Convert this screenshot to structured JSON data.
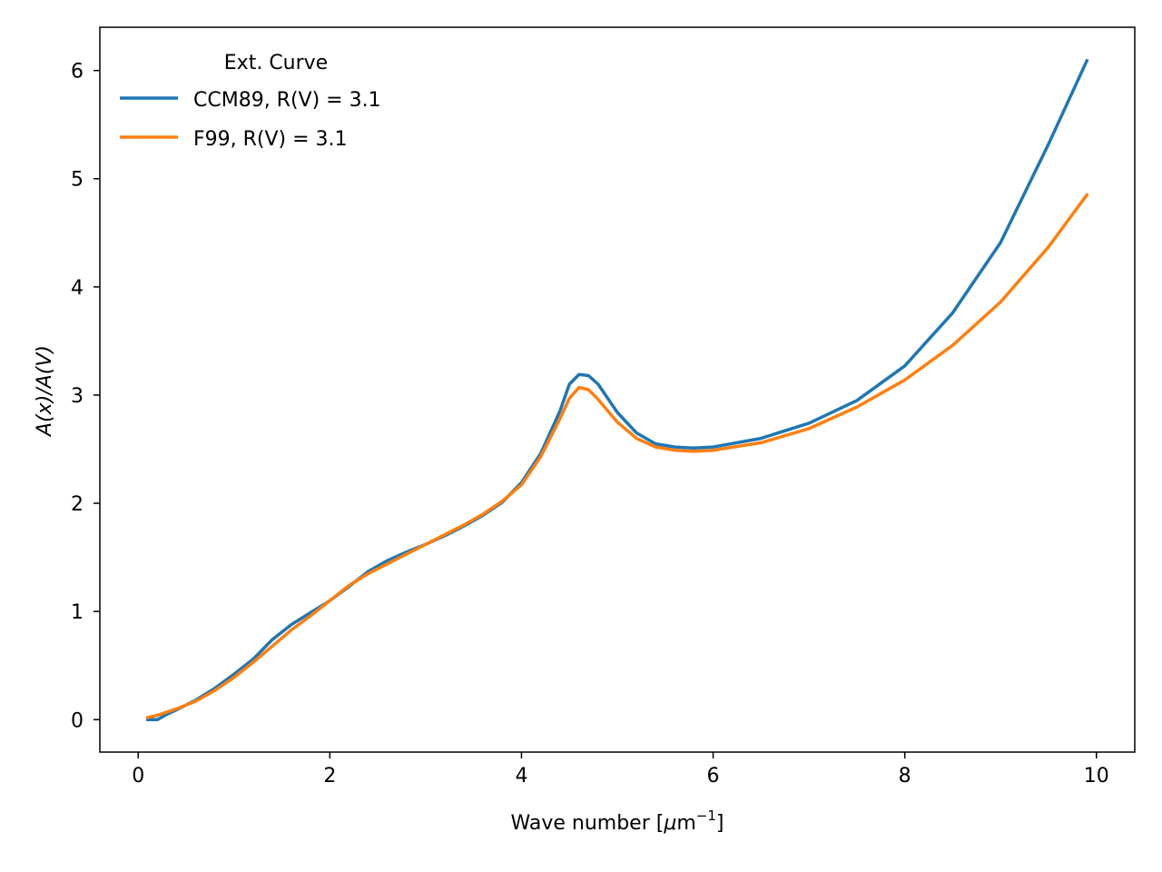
{
  "chart_data": {
    "type": "line",
    "title": "",
    "xlabel_main": "Wave number [",
    "xlabel_mu": "μ",
    "xlabel_unit": "m",
    "xlabel_sup": "−1",
    "xlabel_close": "]",
    "ylabel": "A(x)/A(V)",
    "xlim": [
      -0.4,
      10.4
    ],
    "ylim": [
      -0.3,
      6.4
    ],
    "xticks": [
      0,
      2,
      4,
      6,
      8,
      10
    ],
    "yticks": [
      0,
      1,
      2,
      3,
      4,
      5,
      6
    ],
    "xtick_labels": [
      "0",
      "2",
      "4",
      "6",
      "8",
      "10"
    ],
    "ytick_labels": [
      "0",
      "1",
      "2",
      "3",
      "4",
      "5",
      "6"
    ],
    "grid": false,
    "legend": {
      "title": "Ext. Curve",
      "placement": "top-left",
      "entries": [
        "CCM89, R(V) = 3.1",
        "F99, R(V) = 3.1"
      ]
    },
    "series": [
      {
        "name": "CCM89, R(V) = 3.1",
        "color": "#1f77b4",
        "x": [
          0.1,
          0.2,
          0.3,
          0.4,
          0.6,
          0.8,
          1.0,
          1.2,
          1.4,
          1.6,
          1.8,
          2.0,
          2.2,
          2.4,
          2.6,
          2.8,
          3.0,
          3.2,
          3.4,
          3.6,
          3.8,
          4.0,
          4.2,
          4.4,
          4.5,
          4.6,
          4.7,
          4.8,
          5.0,
          5.2,
          5.4,
          5.6,
          5.8,
          6.0,
          6.5,
          7.0,
          7.5,
          8.0,
          8.5,
          9.0,
          9.5,
          9.9
        ],
        "y": [
          0.0,
          0.0,
          0.05,
          0.09,
          0.18,
          0.29,
          0.42,
          0.56,
          0.74,
          0.88,
          0.99,
          1.1,
          1.23,
          1.37,
          1.47,
          1.55,
          1.62,
          1.7,
          1.79,
          1.89,
          2.01,
          2.19,
          2.46,
          2.85,
          3.1,
          3.19,
          3.18,
          3.1,
          2.84,
          2.65,
          2.55,
          2.52,
          2.51,
          2.52,
          2.6,
          2.74,
          2.95,
          3.27,
          3.76,
          4.41,
          5.32,
          6.09
        ]
      },
      {
        "name": "F99, R(V) = 3.1",
        "color": "#ff7f0e",
        "x": [
          0.1,
          0.2,
          0.3,
          0.4,
          0.6,
          0.8,
          1.0,
          1.2,
          1.4,
          1.6,
          1.8,
          2.0,
          2.2,
          2.4,
          2.6,
          2.8,
          3.0,
          3.2,
          3.4,
          3.6,
          3.8,
          4.0,
          4.2,
          4.4,
          4.5,
          4.6,
          4.7,
          4.8,
          5.0,
          5.2,
          5.4,
          5.6,
          5.8,
          6.0,
          6.5,
          7.0,
          7.5,
          8.0,
          8.5,
          9.0,
          9.5,
          9.9
        ],
        "y": [
          0.02,
          0.04,
          0.07,
          0.1,
          0.17,
          0.27,
          0.39,
          0.53,
          0.68,
          0.83,
          0.96,
          1.1,
          1.24,
          1.35,
          1.44,
          1.53,
          1.62,
          1.71,
          1.8,
          1.9,
          2.02,
          2.17,
          2.43,
          2.78,
          2.97,
          3.07,
          3.05,
          2.96,
          2.75,
          2.6,
          2.52,
          2.49,
          2.48,
          2.49,
          2.56,
          2.69,
          2.89,
          3.14,
          3.46,
          3.86,
          4.37,
          4.85
        ]
      }
    ]
  }
}
